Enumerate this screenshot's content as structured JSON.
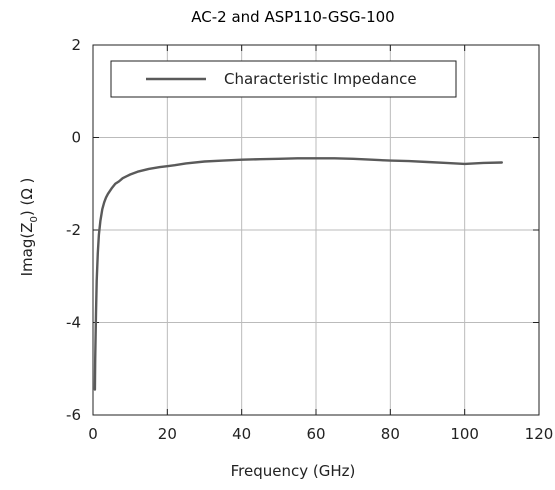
{
  "chart_data": {
    "type": "line",
    "title": "AC-2 and ASP110-GSG-100",
    "xlabel": "Frequency (GHz)",
    "ylabel_parts": {
      "a": "Imag(Z",
      "sub": "0",
      "b": ") (Ω )"
    },
    "xlim": [
      0,
      120
    ],
    "ylim": [
      -6,
      2
    ],
    "xticks": [
      0,
      20,
      40,
      60,
      80,
      100,
      120
    ],
    "yticks": [
      -6,
      -4,
      -2,
      0,
      2
    ],
    "grid": true,
    "legend_position": "top",
    "series": [
      {
        "name": "Characteristic Impedance",
        "color": "#5a5a5a",
        "x": [
          0.5,
          0.6,
          0.8,
          1.0,
          1.3,
          1.6,
          2.0,
          2.5,
          3.0,
          3.5,
          4.0,
          5.0,
          6.0,
          7.0,
          8.0,
          10.0,
          12.0,
          15.0,
          18.0,
          20.0,
          22.0,
          25.0,
          30.0,
          35.0,
          40.0,
          45.0,
          50.0,
          55.0,
          60.0,
          65.0,
          70.0,
          75.0,
          80.0,
          85.0,
          90.0,
          95.0,
          100.0,
          105.0,
          110.0
        ],
        "y": [
          -5.45,
          -4.8,
          -3.8,
          -3.1,
          -2.5,
          -2.1,
          -1.8,
          -1.55,
          -1.4,
          -1.3,
          -1.22,
          -1.1,
          -1.0,
          -0.95,
          -0.88,
          -0.8,
          -0.74,
          -0.68,
          -0.64,
          -0.62,
          -0.6,
          -0.56,
          -0.52,
          -0.5,
          -0.48,
          -0.47,
          -0.46,
          -0.45,
          -0.45,
          -0.45,
          -0.46,
          -0.48,
          -0.5,
          -0.51,
          -0.53,
          -0.55,
          -0.57,
          -0.55,
          -0.54
        ]
      }
    ]
  }
}
